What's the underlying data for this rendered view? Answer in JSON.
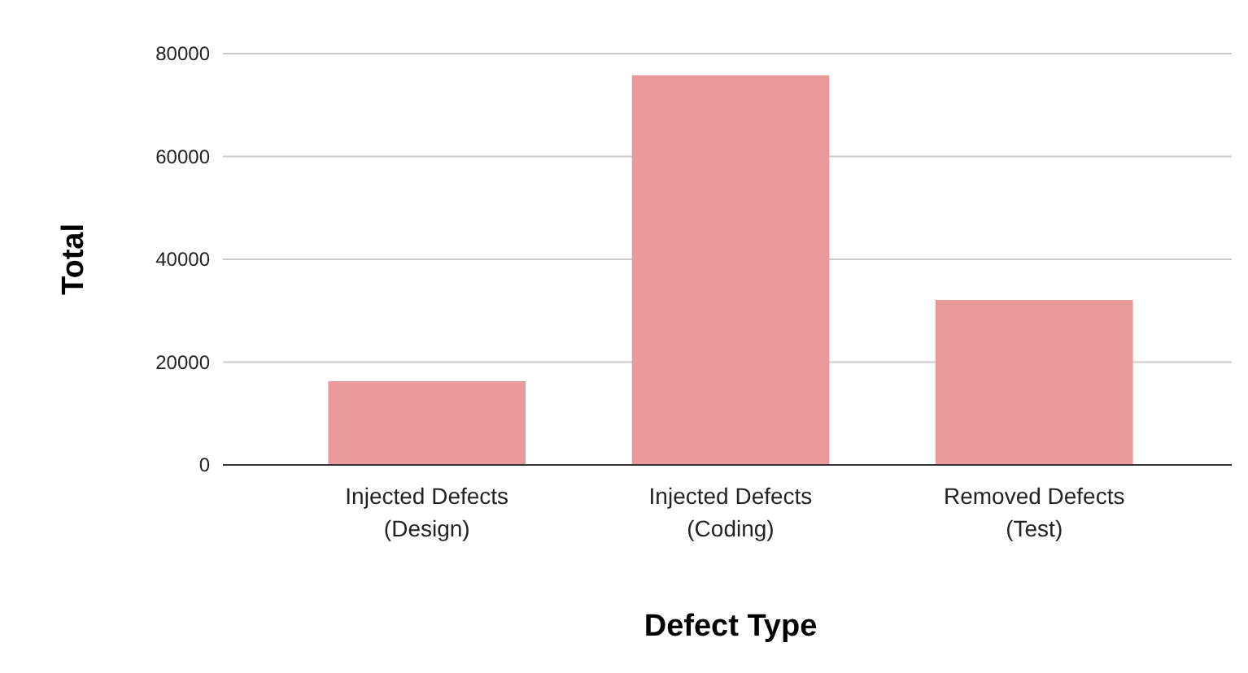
{
  "chart_data": {
    "type": "bar",
    "xlabel": "Defect Type",
    "ylabel": "Total",
    "categories": [
      "Injected Defects\n(Design)",
      "Injected Defects\n(Coding)",
      "Removed Defects\n(Test)"
    ],
    "values": [
      16300,
      75800,
      32100
    ],
    "color": "#ea9999",
    "ylim": [
      0,
      80000
    ],
    "yticks": [
      0,
      20000,
      40000,
      60000,
      80000
    ],
    "grid": "y"
  }
}
